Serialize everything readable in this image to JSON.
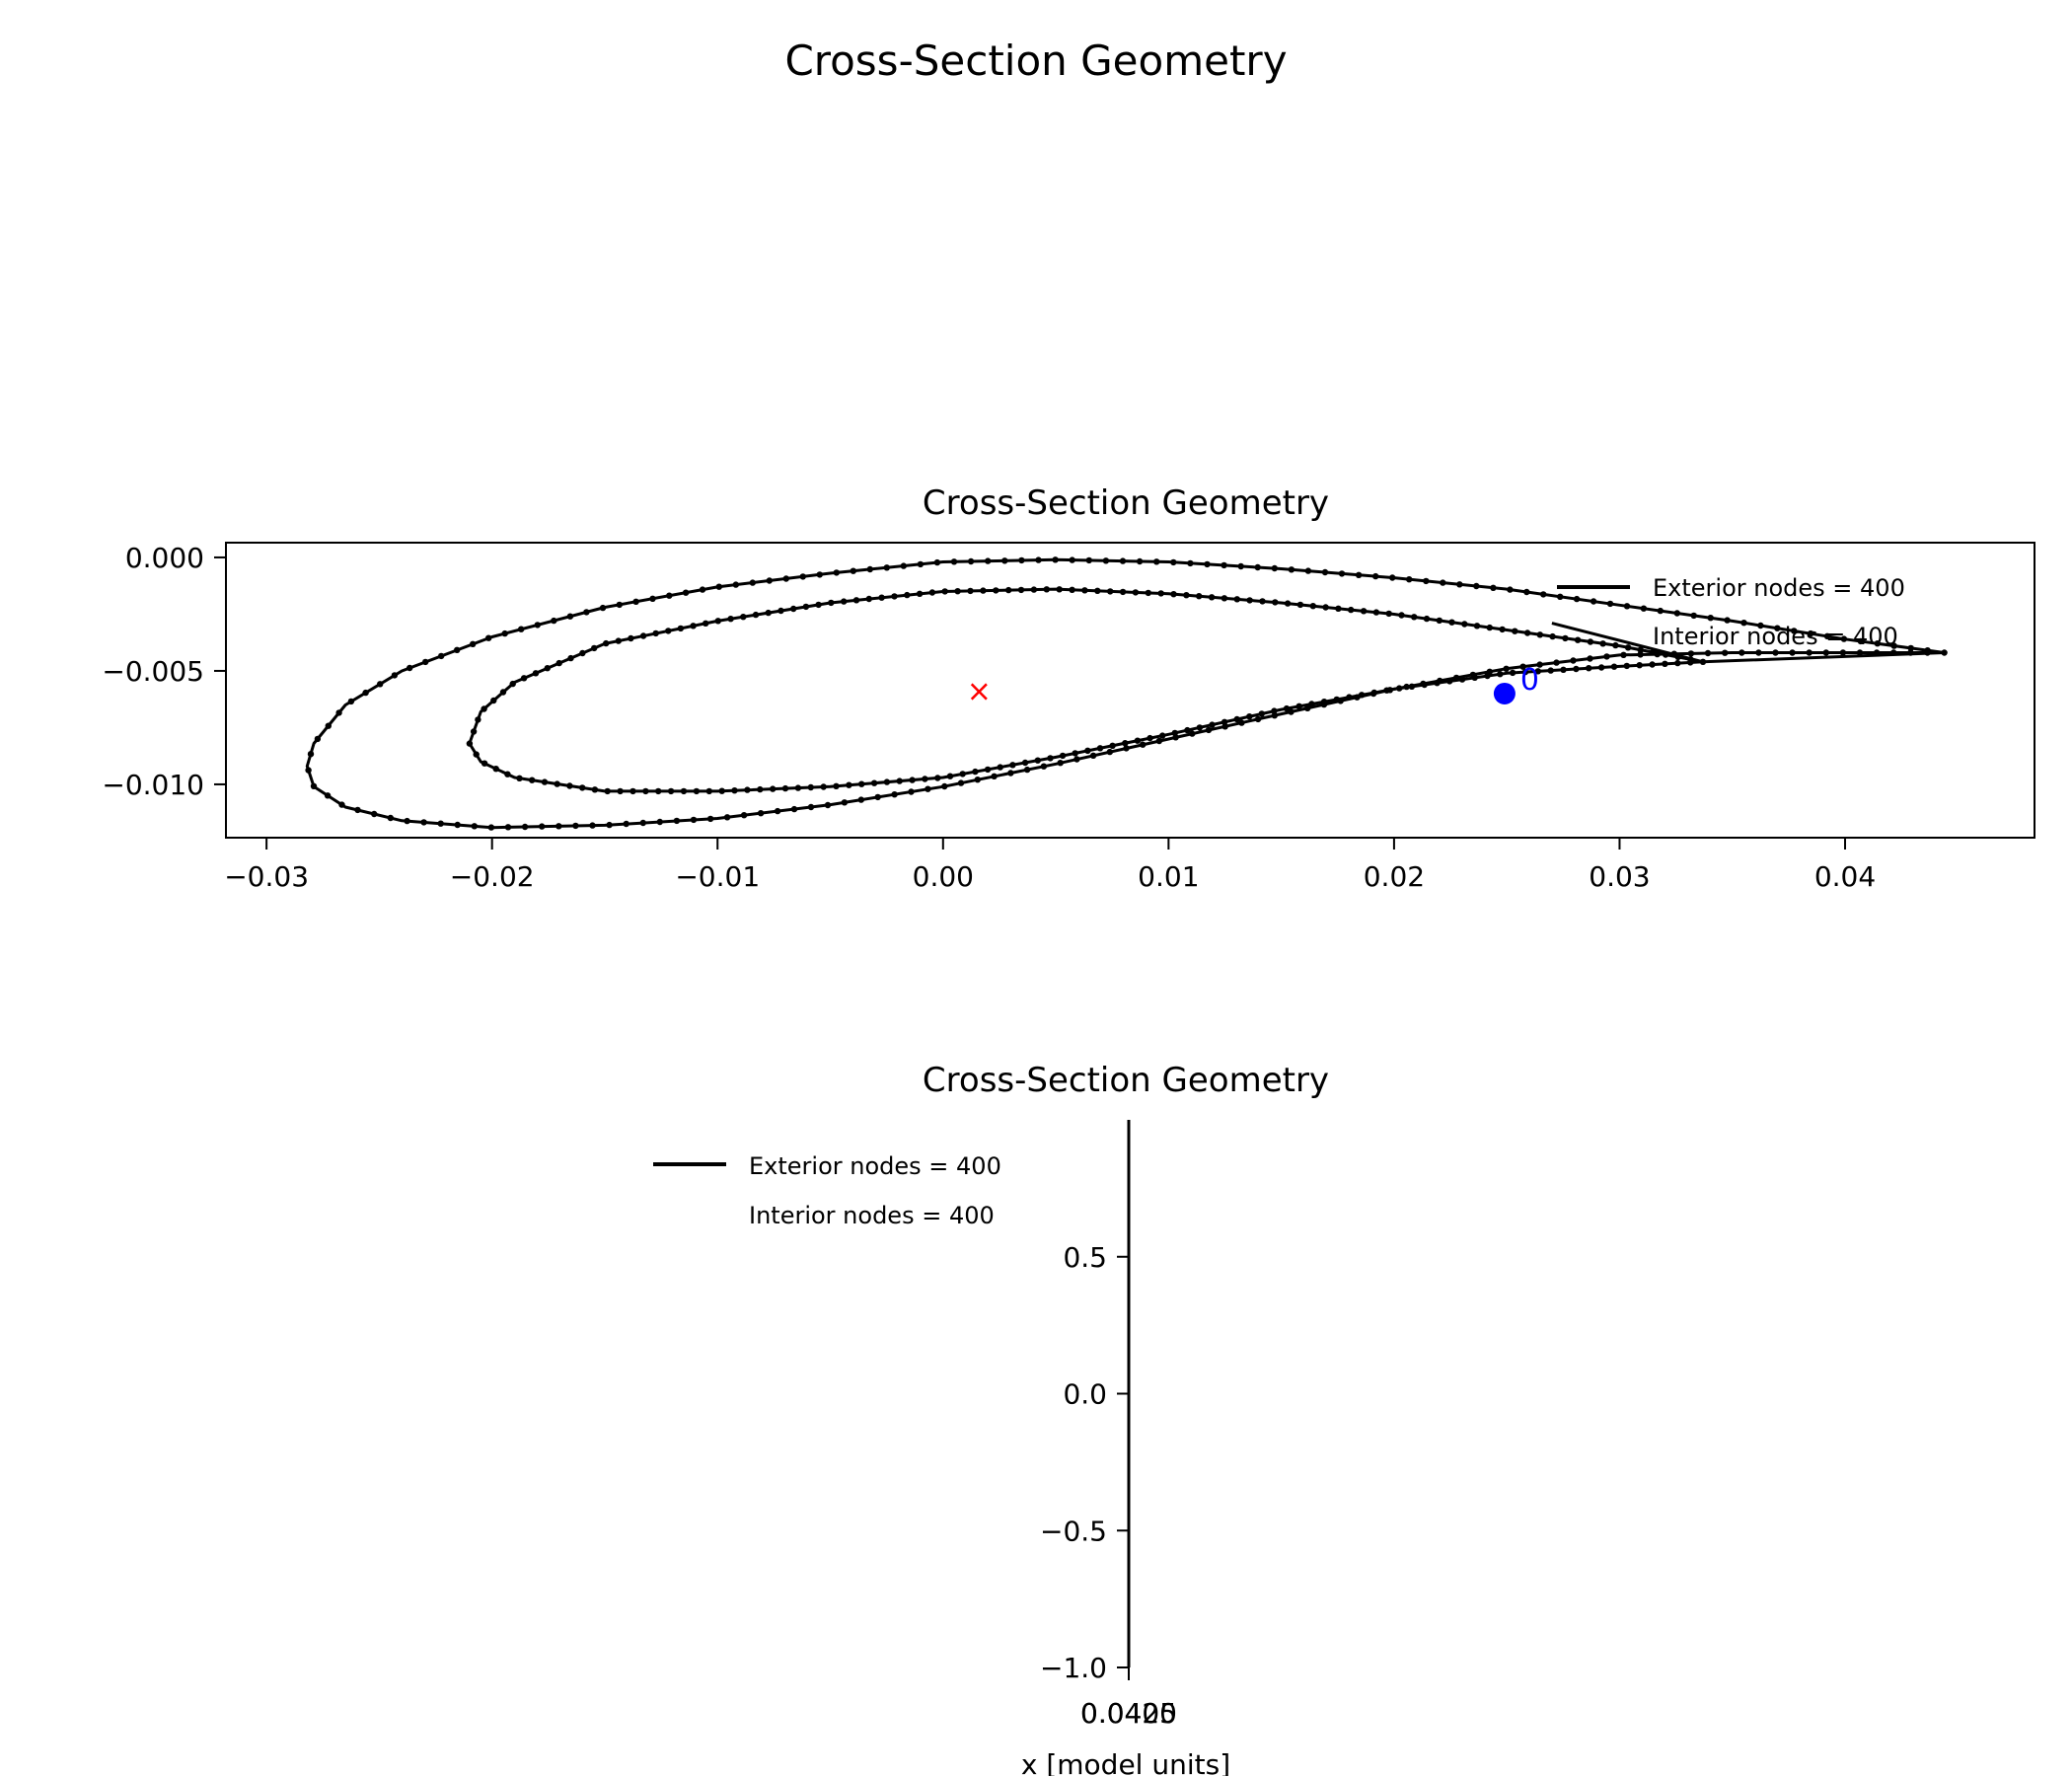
{
  "figure_title": "Cross-Section Geometry",
  "chart_data": [
    {
      "type": "scatter",
      "title": "Cross-Section Geometry",
      "xlabel": "",
      "ylabel": "",
      "xlim": [
        -0.0318,
        0.0484
      ],
      "ylim": [
        -0.01235,
        0.00065
      ],
      "xticks": [
        -0.03,
        -0.02,
        -0.01,
        0.0,
        0.01,
        0.02,
        0.03,
        0.04
      ],
      "xtick_labels": [
        "−0.03",
        "−0.02",
        "−0.01",
        "0.00",
        "0.01",
        "0.02",
        "0.03",
        "0.04"
      ],
      "yticks": [
        0.0,
        -0.005,
        -0.01
      ],
      "ytick_labels": [
        "0.000",
        "−0.005",
        "−0.010"
      ],
      "grid": false,
      "legend": {
        "placement": "upper-right",
        "entries": [
          {
            "label": "Exterior nodes = 400",
            "marker": "line",
            "color": "#000000"
          },
          {
            "label": "Interior nodes = 400",
            "marker": "none",
            "color": "#000000"
          }
        ]
      },
      "exterior_outline": {
        "name": "Exterior nodes = 400",
        "node_count": 400,
        "color": "#000000",
        "x": [
          0.0444,
          0.04,
          0.035,
          0.03,
          0.025,
          0.02,
          0.015,
          0.01,
          0.005,
          0.0,
          -0.005,
          -0.01,
          -0.015,
          -0.02,
          -0.024,
          -0.0265,
          -0.0279,
          -0.0282,
          -0.0279,
          -0.0265,
          -0.024,
          -0.02,
          -0.015,
          -0.01,
          -0.005,
          0.0,
          0.005,
          0.01,
          0.015,
          0.02,
          0.025,
          0.03,
          0.035,
          0.04,
          0.0444
        ],
        "y": [
          -0.0042,
          -0.0036,
          -0.0028,
          -0.0021,
          -0.0014,
          -0.0009,
          -0.0005,
          -0.0002,
          -0.0001,
          -0.0002,
          -0.0007,
          -0.0013,
          -0.0022,
          -0.0035,
          -0.005,
          -0.0065,
          -0.0082,
          -0.0092,
          -0.0101,
          -0.011,
          -0.0116,
          -0.0119,
          -0.0118,
          -0.0115,
          -0.0109,
          -0.0101,
          -0.0091,
          -0.008,
          -0.0069,
          -0.0058,
          -0.0049,
          -0.0043,
          -0.0042,
          -0.0042,
          -0.0042
        ]
      },
      "interior_outline": {
        "name": "Interior nodes = 400",
        "node_count": 400,
        "color": "#000000",
        "x": [
          0.0337,
          0.03,
          0.025,
          0.02,
          0.015,
          0.01,
          0.005,
          0.0,
          -0.005,
          -0.01,
          -0.015,
          -0.019,
          -0.0205,
          -0.021,
          -0.0205,
          -0.019,
          -0.015,
          -0.01,
          -0.005,
          0.0,
          0.005,
          0.01,
          0.015,
          0.02,
          0.025,
          0.03,
          0.0337
        ],
        "y": [
          -0.0046,
          -0.0039,
          -0.0032,
          -0.0025,
          -0.002,
          -0.0016,
          -0.0014,
          -0.0015,
          -0.002,
          -0.0028,
          -0.0038,
          -0.0055,
          -0.0068,
          -0.0082,
          -0.009,
          -0.0097,
          -0.0103,
          -0.0103,
          -0.0101,
          -0.0097,
          -0.0088,
          -0.0078,
          -0.0067,
          -0.0058,
          -0.0051,
          -0.0048,
          -0.0046
        ]
      },
      "trailing_edge_connector": {
        "x": [
          0.027,
          0.0337,
          0.0444
        ],
        "y": [
          -0.0029,
          -0.0046,
          -0.0042
        ],
        "color": "#000000"
      },
      "centroid_marker": {
        "x": 0.0016,
        "y": -0.0059,
        "symbol": "×",
        "color": "#ff0000"
      },
      "reference_node": {
        "x": 0.0249,
        "y": -0.006,
        "label": "0",
        "color": "#0000ff"
      }
    },
    {
      "type": "line",
      "title": "Cross-Section Geometry",
      "xlabel": "x [model units]",
      "ylabel": "",
      "ylim": [
        -1.0,
        1.0
      ],
      "yticks": [
        0.5,
        0.0,
        -0.5,
        -1.0
      ],
      "ytick_labels": [
        "0.5",
        "0.0",
        "−0.5",
        "−1.0"
      ],
      "xtick_overlap_labels": [
        "0.0425",
        "0.0400"
      ],
      "grid": false,
      "legend": {
        "placement": "upper-left",
        "entries": [
          {
            "label": "Exterior nodes = 400",
            "marker": "line",
            "color": "#000000"
          },
          {
            "label": "Interior nodes = 400",
            "marker": "none",
            "color": "#000000"
          }
        ]
      }
    }
  ]
}
